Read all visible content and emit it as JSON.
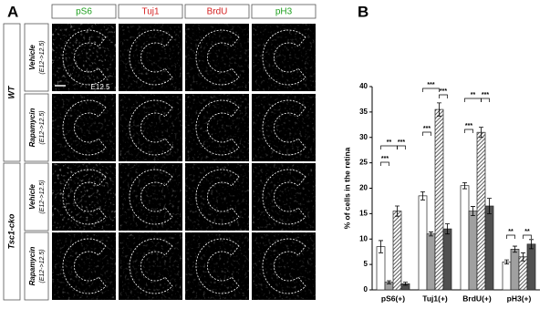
{
  "panel_a": {
    "label": "A",
    "columns": [
      {
        "name": "pS6",
        "color": "#1fa01f"
      },
      {
        "name": "Tuj1",
        "color": "#d42020"
      },
      {
        "name": "BrdU",
        "color": "#d42020"
      },
      {
        "name": "pH3",
        "color": "#1fa01f"
      }
    ],
    "genotypes": [
      "WT",
      "Tsc1-cko"
    ],
    "treatments": [
      "Vehicle",
      "Rapamycin"
    ],
    "stage": "(E12->12.5)",
    "scale_note": "E12.5"
  },
  "chart_data": {
    "type": "bar",
    "panel_label": "B",
    "y_label": "% of cells in the retina",
    "categories": [
      "pS6(+)",
      "Tuj1(+)",
      "BrdU(+)",
      "pH3(+)"
    ],
    "series": [
      {
        "color": "#ffffff",
        "values": [
          8.5,
          18.5,
          20.5,
          5.5
        ],
        "errors": [
          1.2,
          0.8,
          0.6,
          0.4
        ]
      },
      {
        "color": "#a0a0a0",
        "values": [
          1.5,
          11,
          15.5,
          8
        ],
        "errors": [
          0.3,
          0.4,
          0.9,
          0.6
        ]
      },
      {
        "color": "#ffffff",
        "pattern": "hatch",
        "values": [
          15.5,
          35.5,
          31,
          6.5
        ],
        "errors": [
          1.0,
          1.3,
          1.0,
          0.8
        ]
      },
      {
        "color": "#505050",
        "values": [
          1.2,
          12,
          16.5,
          9
        ],
        "errors": [
          0.3,
          1.0,
          1.5,
          0.9
        ]
      }
    ],
    "annotations": [
      "***",
      "**",
      "***",
      "***",
      "***",
      "***",
      "**",
      "***",
      "***",
      "**",
      "**"
    ],
    "ylim": [
      0,
      40
    ],
    "yticks": [
      0,
      5,
      10,
      15,
      20,
      25,
      30,
      35,
      40
    ],
    "grid": false
  }
}
